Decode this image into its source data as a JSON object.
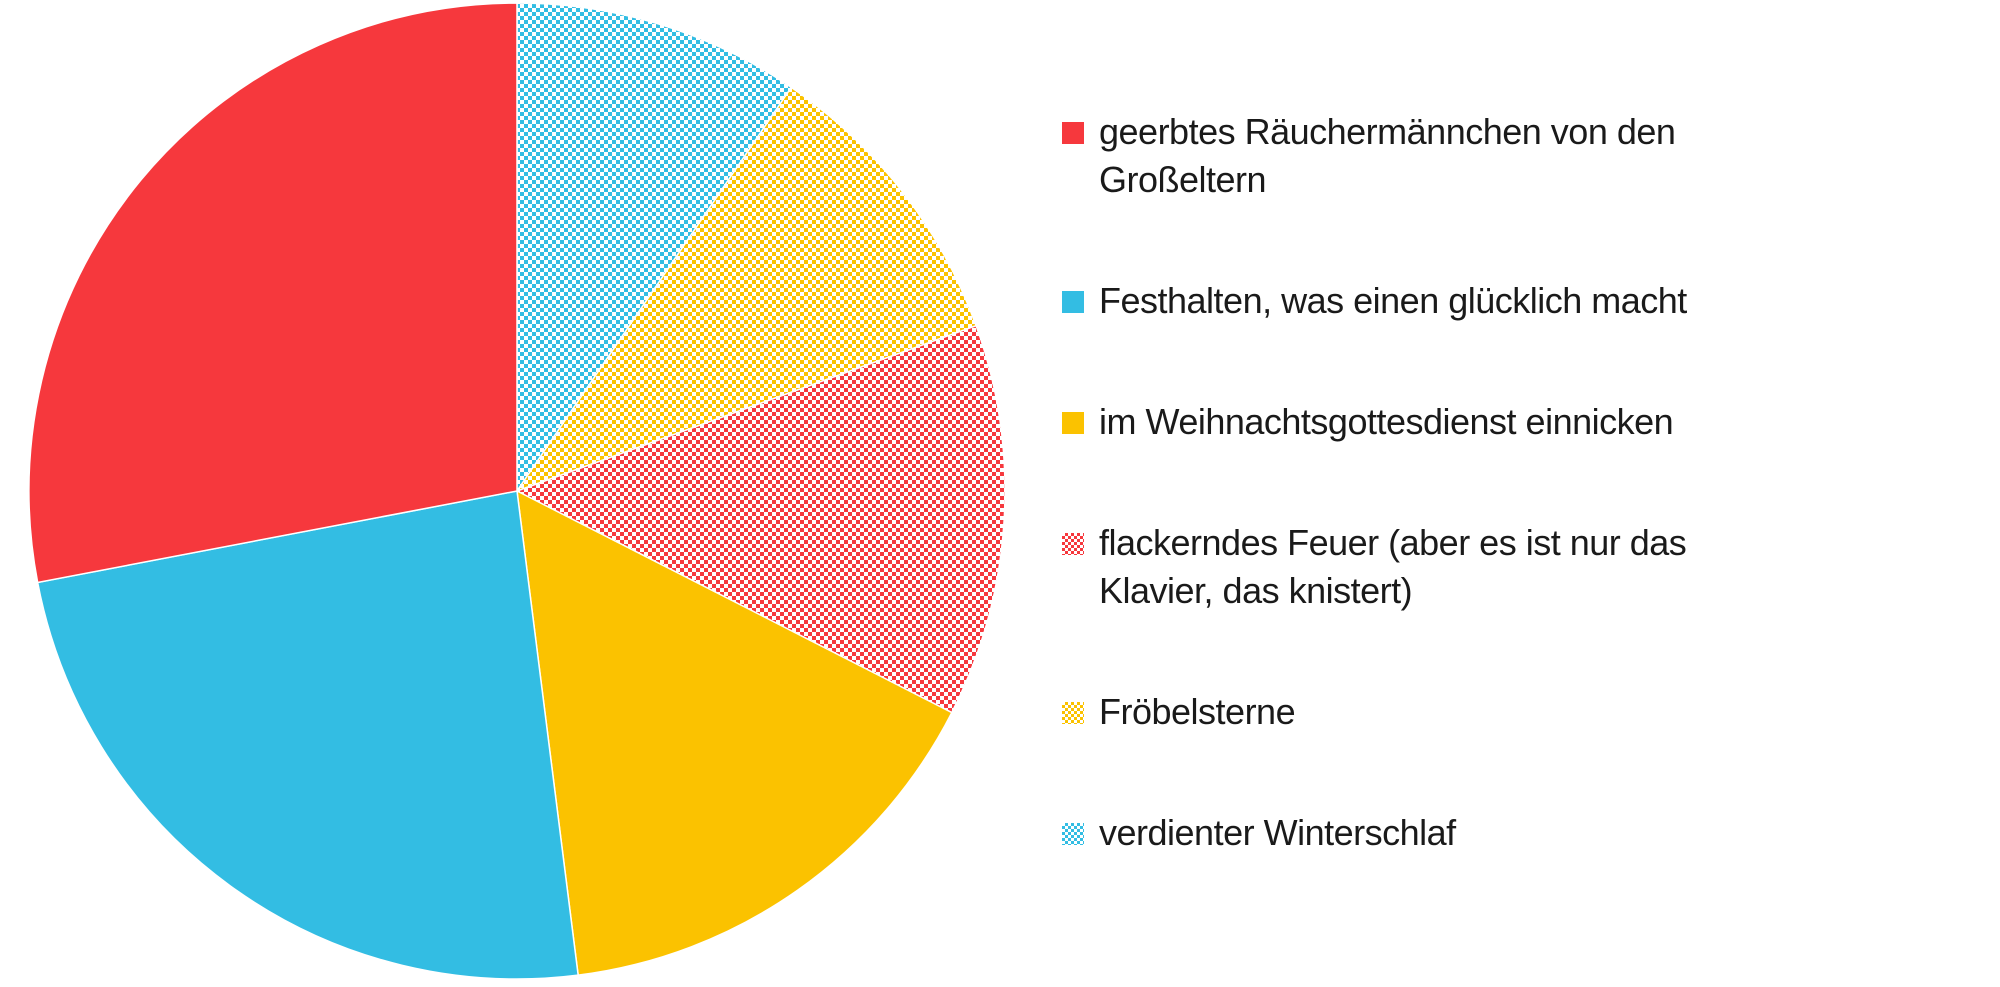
{
  "chart_data": {
    "type": "pie",
    "title": "",
    "slices": [
      {
        "label": "verdienter Winterschlaf",
        "value": 9.5,
        "color": "#33bde3",
        "pattern": "dots"
      },
      {
        "label": "Fröbelsterne",
        "value": 10.0,
        "color": "#fbc200",
        "pattern": "dots"
      },
      {
        "label": "flackerndes Feuer (aber es ist nur das Klavier, das knistert)",
        "value": 13.0,
        "color": "#f6383d",
        "pattern": "dots"
      },
      {
        "label": "im Weihnachtsgottesdienst einnicken",
        "value": 15.5,
        "color": "#fbc200",
        "pattern": "solid"
      },
      {
        "label": "Festhalten, was einen glücklich macht",
        "value": 24.0,
        "color": "#33bde3",
        "pattern": "solid"
      },
      {
        "label": "geerbtes Räuchermännchen von den Großeltern",
        "value": 28.0,
        "color": "#f6383d",
        "pattern": "solid"
      }
    ],
    "start": "12 o'clock",
    "direction": "clockwise",
    "legend": {
      "position": "right",
      "order": [
        5,
        4,
        3,
        2,
        1,
        0
      ]
    }
  }
}
